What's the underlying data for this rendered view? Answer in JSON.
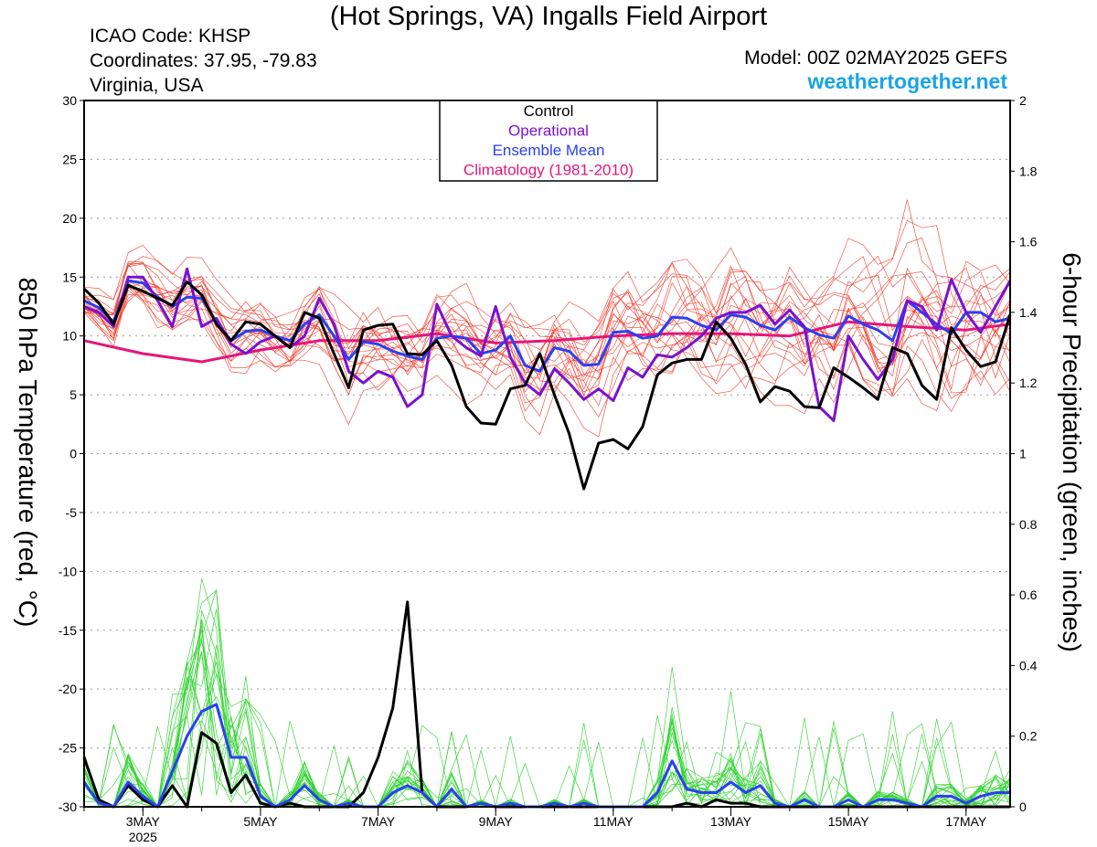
{
  "header": {
    "title": "(Hot Springs, VA) Ingalls Field Airport",
    "icao": "ICAO Code: KHSP",
    "coordinates": "Coordinates: 37.95, -79.83",
    "region": "Virginia, USA",
    "model": "Model: 00Z 02MAY2025 GEFS",
    "site": "weathertogether.net"
  },
  "colors": {
    "control": "#000000",
    "operational": "#7a12d0",
    "ensemble_mean": "#2a40f0",
    "climatology": "#e6157a",
    "members_temp": "#f03a2a",
    "members_precip": "#2ed12e",
    "site": "#1aa3e8"
  },
  "chart_data": {
    "type": "line",
    "x_unit": "days since 02MAY2025 00Z",
    "x_range": [
      0.0,
      15.75
    ],
    "xticks": [
      {
        "x": 1,
        "label": "3MAY",
        "sublabel": "2025"
      },
      {
        "x": 3,
        "label": "5MAY"
      },
      {
        "x": 5,
        "label": "7MAY"
      },
      {
        "x": 7,
        "label": "9MAY"
      },
      {
        "x": 9,
        "label": "11MAY"
      },
      {
        "x": 11,
        "label": "13MAY"
      },
      {
        "x": 13,
        "label": "15MAY"
      },
      {
        "x": 15,
        "label": "17MAY"
      }
    ],
    "y_left": {
      "label": "850 hPa Temperature (red, °C)",
      "range": [
        -30,
        30
      ],
      "ticks": [
        30,
        25,
        20,
        15,
        10,
        5,
        0,
        -5,
        -10,
        -15,
        -20,
        -25,
        -30
      ]
    },
    "y_right": {
      "label": "6-hour Precipitation (green, inches)",
      "range": [
        0,
        2
      ],
      "ticks": [
        "2",
        "1.8",
        "1.6",
        "1.4",
        "1.2",
        "1",
        "0.8",
        "0.6",
        "0.4",
        "0.2",
        "0"
      ]
    },
    "grid": "horizontal dashed",
    "legend": {
      "position": "top-center",
      "entries": [
        {
          "label": "Control",
          "color": "#000000"
        },
        {
          "label": "Operational",
          "color": "#7a12d0"
        },
        {
          "label": "Ensemble Mean",
          "color": "#2a40f0"
        },
        {
          "label": "Climatology (1981-2010)",
          "color": "#e6157a"
        }
      ]
    },
    "temperature_series": [
      {
        "name": "Control",
        "x": [
          0.0,
          0.25,
          0.5,
          0.75,
          1.0,
          1.25,
          1.5,
          1.75,
          2.0,
          2.25,
          2.5,
          2.75,
          3.0,
          3.25,
          3.5,
          3.75,
          4.0,
          4.25,
          4.5,
          4.75,
          5.0,
          5.25,
          5.5,
          5.75,
          6.0,
          6.25,
          6.5,
          6.75,
          7.0,
          7.25,
          7.5,
          7.75,
          8.0,
          8.25,
          8.5,
          8.75,
          9.0,
          9.25,
          9.5,
          9.75,
          10.0,
          10.25,
          10.5,
          10.75,
          11.0,
          11.25,
          11.5,
          11.75,
          12.0,
          12.25,
          12.5,
          12.75,
          13.0,
          13.25,
          13.5,
          13.75,
          14.0,
          14.25,
          14.5,
          14.75,
          15.0,
          15.25,
          15.5,
          15.75
        ],
        "values": [
          14.0,
          12.8,
          11.0,
          14.3,
          13.8,
          13.2,
          12.6,
          14.6,
          13.5,
          11.0,
          9.6,
          11.2,
          11.0,
          10.0,
          9.0,
          12.0,
          11.5,
          8.5,
          5.6,
          10.5,
          10.9,
          11.0,
          8.5,
          8.4,
          9.6,
          7.5,
          4.0,
          2.6,
          2.5,
          5.5,
          5.8,
          8.5,
          5.0,
          1.7,
          -3.0,
          0.9,
          1.2,
          0.4,
          2.3,
          6.7,
          7.7,
          8.0,
          8.0,
          11.2,
          9.8,
          7.6,
          4.4,
          5.7,
          5.3,
          4.0,
          3.9,
          7.3,
          6.5,
          5.6,
          4.6,
          9.0,
          8.5,
          5.8,
          4.6,
          10.7,
          8.8,
          7.4,
          7.8,
          11.8
        ]
      },
      {
        "name": "Operational",
        "x": [
          0.0,
          0.25,
          0.5,
          0.75,
          1.0,
          1.25,
          1.5,
          1.75,
          2.0,
          2.25,
          2.5,
          2.75,
          3.0,
          3.25,
          3.5,
          3.75,
          4.0,
          4.25,
          4.5,
          4.75,
          5.0,
          5.25,
          5.5,
          5.75,
          6.0,
          6.25,
          6.5,
          6.75,
          7.0,
          7.25,
          7.5,
          7.75,
          8.0,
          8.25,
          8.5,
          8.75,
          9.0,
          9.25,
          9.5,
          9.75,
          10.0,
          10.25,
          10.5,
          10.75,
          11.0,
          11.25,
          11.5,
          11.75,
          12.0,
          12.25,
          12.5,
          12.75,
          13.0,
          13.25,
          13.5,
          13.75,
          14.0,
          14.25,
          14.5,
          14.75,
          15.0,
          15.25,
          15.5,
          15.75
        ],
        "values": [
          12.5,
          12.0,
          10.8,
          15.0,
          15.0,
          13.0,
          10.8,
          15.7,
          10.8,
          11.5,
          9.3,
          8.5,
          9.5,
          10.0,
          9.0,
          10.0,
          13.2,
          11.0,
          7.0,
          6.0,
          7.0,
          6.5,
          4.0,
          5.0,
          12.7,
          10.0,
          9.0,
          8.3,
          12.5,
          8.2,
          6.0,
          5.0,
          7.2,
          6.0,
          4.6,
          5.5,
          4.5,
          7.3,
          6.5,
          8.4,
          8.2,
          9.0,
          10.0,
          11.5,
          12.0,
          12.0,
          12.6,
          11.0,
          12.2,
          10.8,
          4.0,
          2.8,
          10.0,
          8.0,
          6.3,
          8.0,
          13.0,
          12.5,
          10.5,
          14.8,
          12.0,
          10.3,
          12.5,
          14.7
        ]
      },
      {
        "name": "Ensemble Mean",
        "x": [
          0.0,
          0.25,
          0.5,
          0.75,
          1.0,
          1.25,
          1.5,
          1.75,
          2.0,
          2.25,
          2.5,
          2.75,
          3.0,
          3.25,
          3.5,
          3.75,
          4.0,
          4.25,
          4.5,
          4.75,
          5.0,
          5.25,
          5.5,
          5.75,
          6.0,
          6.25,
          6.5,
          6.75,
          7.0,
          7.25,
          7.5,
          7.75,
          8.0,
          8.25,
          8.5,
          8.75,
          9.0,
          9.25,
          9.5,
          9.75,
          10.0,
          10.25,
          10.5,
          10.75,
          11.0,
          11.25,
          11.5,
          11.75,
          12.0,
          12.25,
          12.5,
          12.75,
          13.0,
          13.25,
          13.5,
          13.75,
          14.0,
          14.25,
          14.5,
          14.75,
          15.0,
          15.25,
          15.5,
          15.75
        ],
        "values": [
          13.0,
          12.4,
          11.2,
          14.7,
          14.5,
          13.3,
          12.5,
          13.3,
          13.2,
          11.2,
          9.6,
          10.4,
          10.5,
          10.0,
          9.6,
          11.0,
          11.8,
          10.0,
          8.0,
          9.5,
          9.3,
          8.7,
          8.3,
          8.0,
          9.8,
          10.0,
          9.8,
          8.5,
          8.8,
          10.0,
          7.5,
          7.0,
          9.0,
          8.7,
          7.5,
          7.6,
          10.3,
          10.4,
          9.8,
          10.0,
          11.6,
          11.5,
          10.9,
          10.5,
          11.8,
          11.6,
          10.9,
          10.5,
          11.6,
          10.7,
          10.1,
          9.8,
          11.7,
          11.0,
          10.5,
          9.6,
          13.0,
          12.0,
          11.0,
          10.2,
          12.0,
          12.0,
          11.2,
          11.5
        ]
      },
      {
        "name": "Climatology (1981-2010)",
        "x": [
          0.0,
          1.0,
          2.0,
          3.0,
          4.0,
          5.0,
          6.0,
          7.0,
          8.0,
          9.0,
          10.0,
          11.0,
          12.0,
          13.0,
          14.0,
          15.0,
          15.75
        ],
        "values": [
          9.6,
          8.5,
          7.8,
          8.8,
          9.6,
          9.6,
          10.2,
          9.4,
          9.6,
          10.0,
          10.2,
          10.2,
          10.0,
          11.2,
          10.8,
          10.5,
          11.0
        ]
      }
    ],
    "precip_series": [
      {
        "name": "Control",
        "x": [
          0.0,
          0.25,
          0.5,
          0.75,
          1.0,
          1.25,
          1.5,
          1.75,
          2.0,
          2.25,
          2.5,
          2.75,
          3.0,
          3.25,
          3.5,
          3.75,
          4.0,
          4.25,
          4.5,
          4.75,
          5.0,
          5.25,
          5.5,
          5.75,
          6.0,
          6.25,
          6.5,
          6.75,
          7.0,
          7.25,
          7.5,
          7.75,
          8.0,
          8.25,
          8.5,
          8.75,
          9.0,
          9.25,
          9.5,
          9.75,
          10.0,
          10.25,
          10.5,
          10.75,
          11.0,
          11.25,
          11.5,
          11.75,
          12.0,
          12.25,
          12.5,
          12.75,
          13.0,
          13.25,
          13.5,
          13.75,
          14.0,
          14.25,
          14.5,
          14.75,
          15.0,
          15.25,
          15.5,
          15.75
        ],
        "values": [
          0.14,
          0.02,
          0.0,
          0.06,
          0.02,
          0.0,
          0.06,
          0.0,
          0.21,
          0.18,
          0.04,
          0.09,
          0.01,
          0.0,
          0.01,
          0.0,
          0.0,
          0.0,
          0.0,
          0.04,
          0.14,
          0.28,
          0.58,
          0.04,
          0.0,
          0.0,
          0.0,
          0.01,
          0.0,
          0.0,
          0.0,
          0.0,
          0.0,
          0.0,
          0.0,
          0.0,
          0.0,
          0.0,
          0.0,
          0.0,
          0.0,
          0.01,
          0.0,
          0.02,
          0.01,
          0.01,
          0.0,
          0.0,
          0.0,
          0.0,
          0.0,
          0.0,
          0.0,
          0.0,
          0.0,
          0.0,
          0.0,
          0.0,
          0.0,
          0.0,
          0.0,
          0.0,
          0.0,
          0.0
        ]
      },
      {
        "name": "Ensemble Mean",
        "x": [
          0.0,
          0.25,
          0.5,
          0.75,
          1.0,
          1.25,
          1.5,
          1.75,
          2.0,
          2.25,
          2.5,
          2.75,
          3.0,
          3.25,
          3.5,
          3.75,
          4.0,
          4.25,
          4.5,
          4.75,
          5.0,
          5.25,
          5.5,
          5.75,
          6.0,
          6.25,
          6.5,
          6.75,
          7.0,
          7.25,
          7.5,
          7.75,
          8.0,
          8.25,
          8.5,
          8.75,
          9.0,
          9.25,
          9.5,
          9.75,
          10.0,
          10.25,
          10.5,
          10.75,
          11.0,
          11.25,
          11.5,
          11.75,
          12.0,
          12.25,
          12.5,
          12.75,
          13.0,
          13.25,
          13.5,
          13.75,
          14.0,
          14.25,
          14.5,
          14.75,
          15.0,
          15.25,
          15.5,
          15.75
        ],
        "values": [
          0.07,
          0.01,
          0.0,
          0.07,
          0.03,
          0.0,
          0.1,
          0.2,
          0.27,
          0.29,
          0.14,
          0.14,
          0.03,
          0.0,
          0.02,
          0.06,
          0.02,
          0.0,
          0.01,
          0.0,
          0.0,
          0.04,
          0.06,
          0.04,
          0.0,
          0.05,
          0.0,
          0.01,
          0.0,
          0.01,
          0.0,
          0.0,
          0.01,
          0.0,
          0.01,
          0.0,
          0.0,
          0.0,
          0.0,
          0.04,
          0.13,
          0.05,
          0.04,
          0.04,
          0.07,
          0.04,
          0.06,
          0.01,
          0.0,
          0.02,
          0.0,
          0.0,
          0.02,
          0.0,
          0.02,
          0.02,
          0.01,
          0.0,
          0.03,
          0.03,
          0.01,
          0.03,
          0.04,
          0.04
        ]
      }
    ]
  }
}
